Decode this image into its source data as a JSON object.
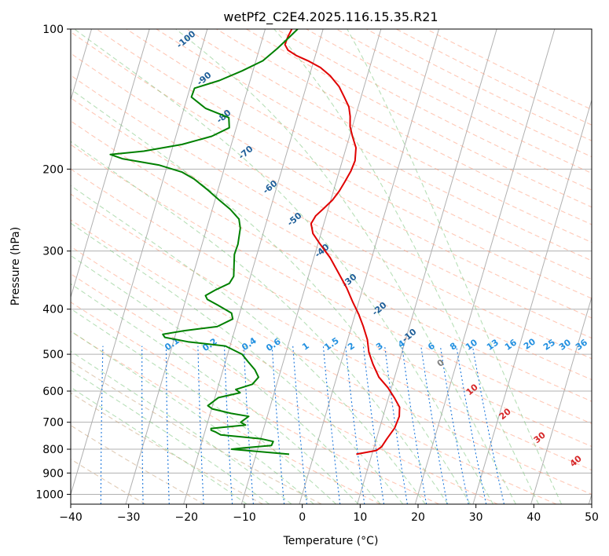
{
  "chart_data": {
    "type": "line",
    "title": "wetPf2_C2E4.2025.116.15.35.R21",
    "xlabel": "Temperature (°C)",
    "ylabel": "Pressure (hPa)",
    "xlim": [
      -40,
      50
    ],
    "ylim": [
      1050,
      100
    ],
    "log_y": true,
    "skew": true,
    "grid": true,
    "x_ticks": [
      -40,
      -30,
      -20,
      -10,
      0,
      10,
      20,
      30,
      40,
      50
    ],
    "y_ticks": [
      100,
      200,
      300,
      400,
      500,
      600,
      700,
      800,
      900,
      1000
    ],
    "series": [
      {
        "role": "temperature",
        "color": "#e00000",
        "points": [
          [
            7.3,
            820
          ],
          [
            10.6,
            805
          ],
          [
            11.3,
            790
          ],
          [
            11.8,
            760
          ],
          [
            12.6,
            720
          ],
          [
            12.8,
            680
          ],
          [
            12.4,
            650
          ],
          [
            11.0,
            620
          ],
          [
            9.4,
            590
          ],
          [
            7.3,
            560
          ],
          [
            5.6,
            525
          ],
          [
            4.3,
            495
          ],
          [
            3.4,
            465
          ],
          [
            2.0,
            435
          ],
          [
            0.6,
            410
          ],
          [
            -1.1,
            385
          ],
          [
            -2.8,
            360
          ],
          [
            -4.9,
            335
          ],
          [
            -7.2,
            310
          ],
          [
            -9.6,
            290
          ],
          [
            -11.4,
            275
          ],
          [
            -12.2,
            262
          ],
          [
            -11.8,
            252
          ],
          [
            -10.8,
            243
          ],
          [
            -9.7,
            233
          ],
          [
            -9.0,
            223
          ],
          [
            -8.5,
            213
          ],
          [
            -8.0,
            202
          ],
          [
            -7.8,
            192
          ],
          [
            -8.3,
            180
          ],
          [
            -9.5,
            170
          ],
          [
            -10.4,
            162
          ],
          [
            -10.9,
            154
          ],
          [
            -11.6,
            147
          ],
          [
            -12.9,
            140
          ],
          [
            -14.3,
            133
          ],
          [
            -16.4,
            126
          ],
          [
            -18.5,
            121
          ],
          [
            -21.0,
            117
          ],
          [
            -23.3,
            114
          ],
          [
            -25.0,
            111
          ],
          [
            -25.8,
            108
          ],
          [
            -25.7,
            104
          ],
          [
            -25.4,
            100
          ]
        ]
      },
      {
        "role": "dewpoint",
        "color": "#008000",
        "points": [
          [
            -4.3,
            820
          ],
          [
            -14.5,
            800
          ],
          [
            -12.5,
            795
          ],
          [
            -7.8,
            785
          ],
          [
            -7.7,
            770
          ],
          [
            -9.9,
            760
          ],
          [
            -17.1,
            745
          ],
          [
            -18.1,
            735
          ],
          [
            -19.0,
            728
          ],
          [
            -19.1,
            722
          ],
          [
            -13.3,
            710
          ],
          [
            -14.3,
            700
          ],
          [
            -13.2,
            680
          ],
          [
            -16.4,
            670
          ],
          [
            -19.9,
            655
          ],
          [
            -20.8,
            645
          ],
          [
            -19.4,
            620
          ],
          [
            -15.9,
            605
          ],
          [
            -16.8,
            595
          ],
          [
            -14.2,
            580
          ],
          [
            -13.5,
            560
          ],
          [
            -14.5,
            540
          ],
          [
            -16.0,
            520
          ],
          [
            -17.5,
            500
          ],
          [
            -20.8,
            480
          ],
          [
            -27.5,
            470
          ],
          [
            -31.7,
            460
          ],
          [
            -32.2,
            453
          ],
          [
            -28.7,
            445
          ],
          [
            -23.2,
            436
          ],
          [
            -20.9,
            420
          ],
          [
            -21.4,
            408
          ],
          [
            -24.2,
            392
          ],
          [
            -26.3,
            381
          ],
          [
            -26.8,
            374
          ],
          [
            -25.4,
            364
          ],
          [
            -23.3,
            352
          ],
          [
            -22.9,
            340
          ],
          [
            -23.4,
            322
          ],
          [
            -23.9,
            305
          ],
          [
            -23.8,
            290
          ],
          [
            -24.2,
            268
          ],
          [
            -24.9,
            256
          ],
          [
            -26.9,
            244
          ],
          [
            -29.3,
            233
          ],
          [
            -31.7,
            222
          ],
          [
            -34.7,
            210
          ],
          [
            -37.1,
            203
          ],
          [
            -41.5,
            196
          ],
          [
            -48.1,
            190
          ],
          [
            -50.4,
            186
          ],
          [
            -44.8,
            183
          ],
          [
            -38.5,
            177
          ],
          [
            -33.8,
            170
          ],
          [
            -31.2,
            163
          ],
          [
            -31.8,
            155
          ],
          [
            -36.3,
            148
          ],
          [
            -39.3,
            140
          ],
          [
            -39.2,
            134
          ],
          [
            -35.3,
            129
          ],
          [
            -31.9,
            123
          ],
          [
            -28.8,
            117
          ],
          [
            -26.9,
            110
          ],
          [
            -25.4,
            104
          ],
          [
            -24.4,
            100
          ]
        ]
      }
    ],
    "mixing_ratio_labels": [
      "0.1",
      "0.2",
      "0.4",
      "0.6",
      "1",
      "1.5",
      "2",
      "3",
      "4",
      "6",
      "8",
      "10",
      "13",
      "16",
      "20",
      "25",
      "30",
      "36"
    ],
    "mixing_ratio_values": [
      0.1,
      0.2,
      0.4,
      0.6,
      1,
      1.5,
      2,
      3,
      4,
      6,
      8,
      10,
      13,
      16,
      20,
      25,
      30,
      36
    ],
    "moist_adiabat_labels": [
      "-100",
      "-90",
      "-80",
      "-70",
      "-60",
      "-50",
      "-40",
      "-30",
      "-20",
      "-10"
    ],
    "moist_adiabat_values": [
      -100,
      -90,
      -80,
      -70,
      -60,
      -50,
      -40,
      -30,
      -20,
      -10
    ],
    "warm_labels": [
      "0",
      "10",
      "20",
      "30",
      "40"
    ],
    "warm_values": [
      0,
      10,
      20,
      30,
      40
    ],
    "colors": {
      "isotherm": "#8c8c8c",
      "dry_adiabat": "#ff9a7a",
      "moist_adiabat": "#7cc47c",
      "mixing_ratio": "#1e78dc",
      "moist_label": "#1f5f99",
      "mixing_label": "#2290e0",
      "warm_label": "#d62728",
      "zero_label": "#7f7f7f",
      "dry_adiabat_cold": "#c9a27a"
    }
  }
}
